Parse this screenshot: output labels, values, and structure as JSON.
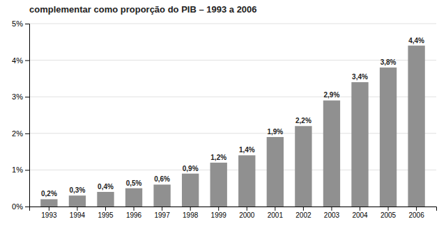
{
  "chart_data": {
    "type": "bar",
    "title": "complementar como proporção do PIB – 1993 a 2006",
    "categories": [
      "1993",
      "1994",
      "1995",
      "1996",
      "1997",
      "1998",
      "1999",
      "2000",
      "2001",
      "2002",
      "2003",
      "2004",
      "2005",
      "2006"
    ],
    "values": [
      0.2,
      0.3,
      0.4,
      0.5,
      0.6,
      0.9,
      1.2,
      1.4,
      1.9,
      2.2,
      2.9,
      3.4,
      3.8,
      4.4
    ],
    "value_labels": [
      "0,2%",
      "0,3%",
      "0,4%",
      "0,5%",
      "0,6%",
      "0,9%",
      "1,2%",
      "1,4%",
      "1,9%",
      "2,2%",
      "2,9%",
      "3,4%",
      "3,8%",
      "4,4%"
    ],
    "data_labels": true,
    "color": "#909090",
    "ylim": [
      0,
      5
    ],
    "yticks": [
      {
        "value": 0,
        "label": "0%"
      },
      {
        "value": 1,
        "label": "1%"
      },
      {
        "value": 2,
        "label": "2%"
      },
      {
        "value": 3,
        "label": "3%"
      },
      {
        "value": 4,
        "label": "4%"
      },
      {
        "value": 5,
        "label": "5%"
      }
    ],
    "grid": true
  }
}
